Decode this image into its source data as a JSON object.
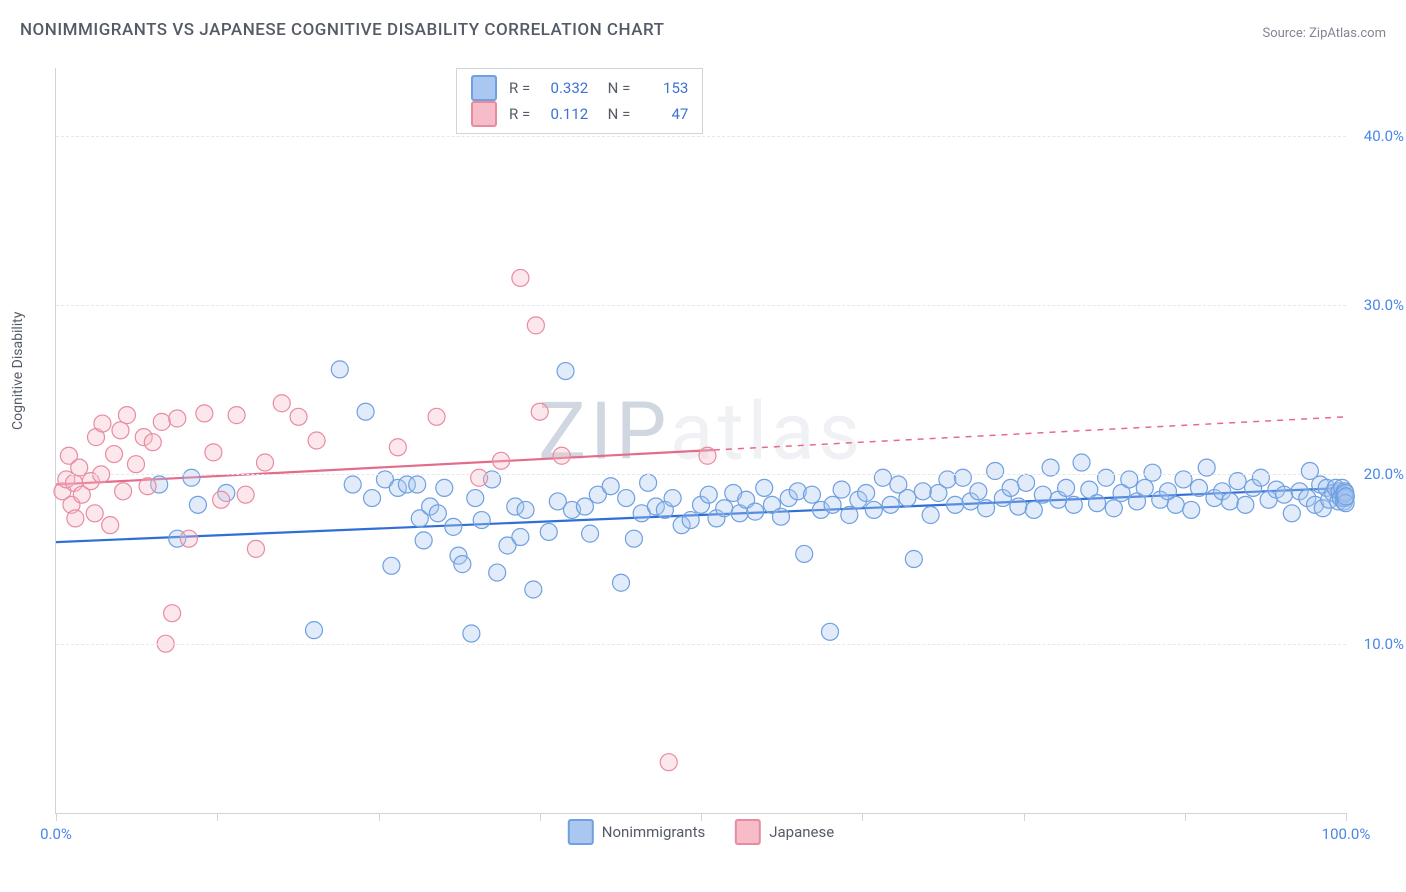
{
  "title": "NONIMMIGRANTS VS JAPANESE COGNITIVE DISABILITY CORRELATION CHART",
  "source_prefix": "Source: ",
  "source_name": "ZipAtlas.com",
  "ylabel": "Cognitive Disability",
  "watermark": {
    "z": "Z",
    "ip": "IP",
    "rest": "atlas"
  },
  "chart": {
    "type": "scatter",
    "background_color": "#ffffff",
    "grid_color": "#e5e7ea",
    "axis_color": "#cfd3db",
    "label_fontsize": 14,
    "tick_fontsize": 15,
    "tick_color": "#4a86e8",
    "xlim": [
      0,
      100
    ],
    "ylim": [
      0,
      44
    ],
    "ytick_values": [
      10,
      20,
      30,
      40
    ],
    "ytick_labels": [
      "10.0%",
      "20.0%",
      "30.0%",
      "40.0%"
    ],
    "xtick_values": [
      0,
      12.5,
      25,
      37.5,
      50,
      62.5,
      75,
      87.5,
      100
    ],
    "xtick_labels": {
      "0": "0.0%",
      "100": "100.0%"
    },
    "marker_radius": 8.5,
    "marker_stroke_width": 1.2,
    "marker_fill_opacity": 0.35,
    "trendline_width": 2.2,
    "series": [
      {
        "name": "Nonimmigrants",
        "color_fill": "#a9c7f0",
        "color_stroke": "#6fa0e0",
        "trend_color": "#2f6fd6",
        "trend": {
          "x1": 0,
          "y1": 16.0,
          "x2": 100,
          "y2": 19.2,
          "solid_to_x": 100
        },
        "R": "0.332",
        "N": "153",
        "points": [
          [
            8,
            19.4
          ],
          [
            9.4,
            16.2
          ],
          [
            10.5,
            19.8
          ],
          [
            11,
            18.2
          ],
          [
            13.2,
            18.9
          ],
          [
            20,
            10.8
          ],
          [
            22,
            26.2
          ],
          [
            23,
            19.4
          ],
          [
            24.5,
            18.6
          ],
          [
            24,
            23.7
          ],
          [
            25.5,
            19.7
          ],
          [
            26,
            14.6
          ],
          [
            26.5,
            19.2
          ],
          [
            27.2,
            19.4
          ],
          [
            28,
            19.4
          ],
          [
            28.2,
            17.4
          ],
          [
            28.5,
            16.1
          ],
          [
            29,
            18.1
          ],
          [
            29.6,
            17.7
          ],
          [
            30.1,
            19.2
          ],
          [
            30.8,
            16.9
          ],
          [
            31.2,
            15.2
          ],
          [
            31.5,
            14.7
          ],
          [
            32.2,
            10.6
          ],
          [
            32.5,
            18.6
          ],
          [
            33,
            17.3
          ],
          [
            33.8,
            19.7
          ],
          [
            34.2,
            14.2
          ],
          [
            35,
            15.8
          ],
          [
            35.6,
            18.1
          ],
          [
            36,
            16.3
          ],
          [
            36.4,
            17.9
          ],
          [
            37,
            13.2
          ],
          [
            38.2,
            16.6
          ],
          [
            38.9,
            18.4
          ],
          [
            39.5,
            26.1
          ],
          [
            40,
            17.9
          ],
          [
            41,
            18.1
          ],
          [
            41.4,
            16.5
          ],
          [
            42,
            18.8
          ],
          [
            43,
            19.3
          ],
          [
            43.8,
            13.6
          ],
          [
            44.2,
            18.6
          ],
          [
            44.8,
            16.2
          ],
          [
            45.4,
            17.7
          ],
          [
            45.9,
            19.5
          ],
          [
            46.5,
            18.1
          ],
          [
            47.2,
            17.9
          ],
          [
            47.8,
            18.6
          ],
          [
            48.5,
            17.0
          ],
          [
            49.2,
            17.3
          ],
          [
            50,
            18.2
          ],
          [
            50.6,
            18.8
          ],
          [
            51.2,
            17.4
          ],
          [
            51.8,
            18.0
          ],
          [
            52.5,
            18.9
          ],
          [
            53,
            17.7
          ],
          [
            53.5,
            18.5
          ],
          [
            54.2,
            17.8
          ],
          [
            54.9,
            19.2
          ],
          [
            55.5,
            18.2
          ],
          [
            56.2,
            17.5
          ],
          [
            56.8,
            18.6
          ],
          [
            57.5,
            19.0
          ],
          [
            58,
            15.3
          ],
          [
            58.6,
            18.8
          ],
          [
            59.3,
            17.9
          ],
          [
            60,
            10.7
          ],
          [
            60.2,
            18.2
          ],
          [
            60.9,
            19.1
          ],
          [
            61.5,
            17.6
          ],
          [
            62.2,
            18.5
          ],
          [
            62.8,
            18.9
          ],
          [
            63.4,
            17.9
          ],
          [
            64.1,
            19.8
          ],
          [
            64.7,
            18.2
          ],
          [
            65.3,
            19.4
          ],
          [
            66,
            18.6
          ],
          [
            66.5,
            15.0
          ],
          [
            67.2,
            19.0
          ],
          [
            67.8,
            17.6
          ],
          [
            68.4,
            18.9
          ],
          [
            69.1,
            19.7
          ],
          [
            69.7,
            18.2
          ],
          [
            70.3,
            19.8
          ],
          [
            70.9,
            18.4
          ],
          [
            71.5,
            19.0
          ],
          [
            72.1,
            18.0
          ],
          [
            72.8,
            20.2
          ],
          [
            73.4,
            18.6
          ],
          [
            74,
            19.2
          ],
          [
            74.6,
            18.1
          ],
          [
            75.2,
            19.5
          ],
          [
            75.8,
            17.9
          ],
          [
            76.5,
            18.8
          ],
          [
            77.1,
            20.4
          ],
          [
            77.7,
            18.5
          ],
          [
            78.3,
            19.2
          ],
          [
            78.9,
            18.2
          ],
          [
            79.5,
            20.7
          ],
          [
            80.1,
            19.1
          ],
          [
            80.7,
            18.3
          ],
          [
            81.4,
            19.8
          ],
          [
            82,
            18.0
          ],
          [
            82.6,
            18.9
          ],
          [
            83.2,
            19.7
          ],
          [
            83.8,
            18.4
          ],
          [
            84.4,
            19.2
          ],
          [
            85,
            20.1
          ],
          [
            85.6,
            18.5
          ],
          [
            86.2,
            19.0
          ],
          [
            86.8,
            18.2
          ],
          [
            87.4,
            19.7
          ],
          [
            88,
            17.9
          ],
          [
            88.6,
            19.2
          ],
          [
            89.2,
            20.4
          ],
          [
            89.8,
            18.6
          ],
          [
            90.4,
            19.0
          ],
          [
            91,
            18.4
          ],
          [
            91.6,
            19.6
          ],
          [
            92.2,
            18.2
          ],
          [
            92.8,
            19.2
          ],
          [
            93.4,
            19.8
          ],
          [
            94,
            18.5
          ],
          [
            94.6,
            19.1
          ],
          [
            95.2,
            18.8
          ],
          [
            95.8,
            17.7
          ],
          [
            96.4,
            19.0
          ],
          [
            97,
            18.6
          ],
          [
            97.2,
            20.2
          ],
          [
            97.6,
            18.2
          ],
          [
            98,
            19.4
          ],
          [
            98.2,
            18.0
          ],
          [
            98.5,
            19.2
          ],
          [
            98.7,
            18.5
          ],
          [
            99,
            18.9
          ],
          [
            99.2,
            19.2
          ],
          [
            99.4,
            18.4
          ],
          [
            99.5,
            19.0
          ],
          [
            99.6,
            18.6
          ],
          [
            99.7,
            19.2
          ],
          [
            99.8,
            18.8
          ],
          [
            99.85,
            18.4
          ],
          [
            99.9,
            19.0
          ],
          [
            99.92,
            18.6
          ],
          [
            99.95,
            18.9
          ],
          [
            99.97,
            18.3
          ],
          [
            99.99,
            18.7
          ]
        ]
      },
      {
        "name": "Japanese",
        "color_fill": "#f6bcc8",
        "color_stroke": "#e98ba0",
        "trend_color": "#e46c8a",
        "trend": {
          "x1": 0,
          "y1": 19.4,
          "x2": 100,
          "y2": 23.4,
          "solid_to_x": 51
        },
        "R": "0.112",
        "N": "47",
        "points": [
          [
            0.5,
            19.0
          ],
          [
            0.8,
            19.7
          ],
          [
            1.0,
            21.1
          ],
          [
            1.2,
            18.2
          ],
          [
            1.4,
            19.5
          ],
          [
            1.5,
            17.4
          ],
          [
            1.8,
            20.4
          ],
          [
            2.0,
            18.8
          ],
          [
            2.7,
            19.6
          ],
          [
            3.1,
            22.2
          ],
          [
            3.0,
            17.7
          ],
          [
            3.5,
            20.0
          ],
          [
            3.6,
            23.0
          ],
          [
            4.2,
            17.0
          ],
          [
            4.5,
            21.2
          ],
          [
            5.0,
            22.6
          ],
          [
            5.2,
            19.0
          ],
          [
            5.5,
            23.5
          ],
          [
            6.2,
            20.6
          ],
          [
            6.8,
            22.2
          ],
          [
            7.1,
            19.3
          ],
          [
            7.5,
            21.9
          ],
          [
            8.2,
            23.1
          ],
          [
            8.5,
            10.0
          ],
          [
            9.0,
            11.8
          ],
          [
            9.4,
            23.3
          ],
          [
            10.3,
            16.2
          ],
          [
            11.5,
            23.6
          ],
          [
            12.2,
            21.3
          ],
          [
            12.8,
            18.5
          ],
          [
            14.0,
            23.5
          ],
          [
            14.7,
            18.8
          ],
          [
            15.5,
            15.6
          ],
          [
            16.2,
            20.7
          ],
          [
            17.5,
            24.2
          ],
          [
            18.8,
            23.4
          ],
          [
            20.2,
            22.0
          ],
          [
            26.5,
            21.6
          ],
          [
            29.5,
            23.4
          ],
          [
            32.8,
            19.8
          ],
          [
            34.5,
            20.8
          ],
          [
            36.0,
            31.6
          ],
          [
            37.2,
            28.8
          ],
          [
            37.5,
            23.7
          ],
          [
            39.2,
            21.1
          ],
          [
            47.5,
            3.0
          ],
          [
            50.5,
            21.1
          ]
        ]
      }
    ]
  },
  "bottom_legend": [
    {
      "label": "Nonimmigrants",
      "fill": "#a9c7f0",
      "stroke": "#6fa0e0"
    },
    {
      "label": "Japanese",
      "fill": "#f6bcc8",
      "stroke": "#e98ba0"
    }
  ]
}
